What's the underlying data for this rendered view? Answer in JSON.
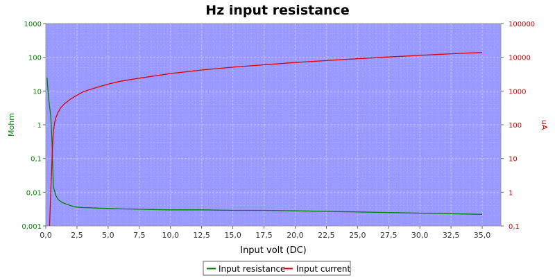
{
  "chart_data": {
    "type": "line",
    "title": "Hz input resistance",
    "xlabel": "Input volt (DC)",
    "ylabel_left": "Mohm",
    "ylabel_right": "uA",
    "xlim": [
      0,
      36.5
    ],
    "x_ticks": [
      "0,0",
      "2,5",
      "5,0",
      "7,5",
      "10,0",
      "12,5",
      "15,0",
      "17,5",
      "20,0",
      "22,5",
      "25,0",
      "27,5",
      "30,0",
      "32,5",
      "35,0"
    ],
    "x_tick_values": [
      0,
      2.5,
      5,
      7.5,
      10,
      12.5,
      15,
      17.5,
      20,
      22.5,
      25,
      27.5,
      30,
      32.5,
      35
    ],
    "y_left": {
      "scale": "log",
      "lim": [
        0.001,
        1000
      ],
      "ticks": [
        "0,001",
        "0,01",
        "0,1",
        "1",
        "10",
        "100",
        "1000"
      ],
      "tick_values": [
        0.001,
        0.01,
        0.1,
        1,
        10,
        100,
        1000
      ]
    },
    "y_right": {
      "scale": "log",
      "lim": [
        0.1,
        100000
      ],
      "ticks": [
        "0,1",
        "1",
        "10",
        "100",
        "1000",
        "10000",
        "100000"
      ],
      "tick_values": [
        0.1,
        1,
        10,
        100,
        1000,
        10000,
        100000
      ]
    },
    "grid": true,
    "legend_position": "bottom-center",
    "plot_background": "#9999ff",
    "series": [
      {
        "name": "Input resistance",
        "axis": "left",
        "color": "#008000",
        "x": [
          0.1,
          0.2,
          0.3,
          0.4,
          0.5,
          0.6,
          0.8,
          1.0,
          1.3,
          1.6,
          2.0,
          2.5,
          3.0,
          4.0,
          5.0,
          6.0,
          8.0,
          10.0,
          12.5,
          15.0,
          17.5,
          20.0,
          22.5,
          25.0,
          27.5,
          30.0,
          32.5,
          35.0
        ],
        "y": [
          25,
          8,
          3.5,
          1.8,
          0.3,
          0.015,
          0.008,
          0.006,
          0.005,
          0.0045,
          0.004,
          0.0036,
          0.0035,
          0.0034,
          0.0033,
          0.0032,
          0.0031,
          0.003,
          0.003,
          0.0029,
          0.0029,
          0.0028,
          0.0027,
          0.0026,
          0.0025,
          0.0024,
          0.0023,
          0.0022
        ]
      },
      {
        "name": "Input current",
        "axis": "right",
        "color": "#e00000",
        "x": [
          0.3,
          0.4,
          0.5,
          0.6,
          0.7,
          0.8,
          1.0,
          1.2,
          1.5,
          2.0,
          2.5,
          3.0,
          4.0,
          5.0,
          6.0,
          7.5,
          10.0,
          12.5,
          15.0,
          17.5,
          20.0,
          22.5,
          25.0,
          27.5,
          30.0,
          32.5,
          35.0
        ],
        "y": [
          0.1,
          1,
          10,
          60,
          110,
          160,
          240,
          320,
          420,
          580,
          750,
          950,
          1250,
          1600,
          1950,
          2400,
          3300,
          4200,
          5100,
          6000,
          7000,
          8000,
          9100,
          10200,
          11400,
          12700,
          14000
        ]
      }
    ]
  }
}
